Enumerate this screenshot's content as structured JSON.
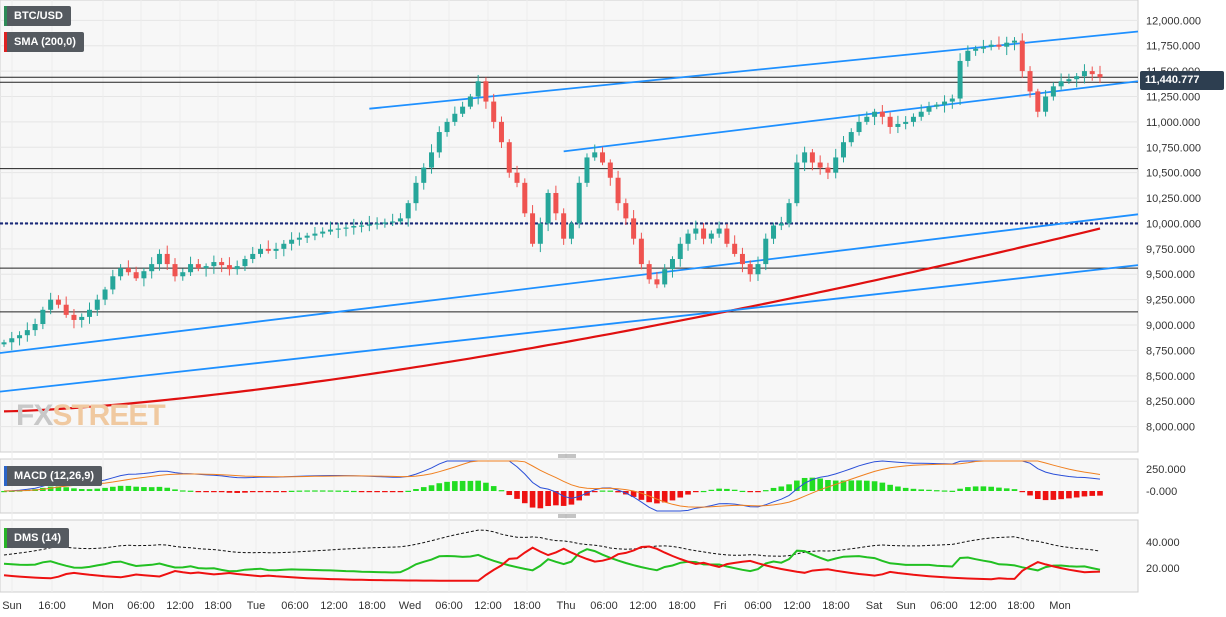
{
  "instrument": "BTC/USD",
  "indicators": {
    "sma": "SMA (200,0)",
    "macd": "MACD (12,26,9)",
    "dms": "DMS (14)"
  },
  "current_price": "11,440.777",
  "logo": {
    "part1": "FX",
    "part2": "STREET"
  },
  "colors": {
    "up": "#26a69a",
    "down": "#ef5350",
    "sma": "#e01010",
    "trend": "#1e90ff",
    "macd_line": "#2a4fd8",
    "signal_line": "#f08020",
    "hist_pos": "#22dd22",
    "hist_neg": "#ee1111",
    "dms_plus": "#22c022",
    "dms_minus": "#ee1111",
    "adx": "#111111"
  },
  "chart_data": [
    {
      "type": "candlestick",
      "title": "",
      "y_ticks": [
        "12,000.000",
        "11,750.000",
        "11,500.000",
        "11,250.000",
        "11,000.000",
        "10,750.000",
        "10,500.000",
        "10,250.000",
        "10,000.000",
        "9,750.000",
        "9,500.000",
        "9,250.000",
        "9,000.000",
        "8,750.000",
        "8,500.000",
        "8,250.000",
        "8,000.000"
      ],
      "ylim": [
        7750,
        12200
      ],
      "x_ticks": [
        "Sun",
        "16:00",
        "Mon",
        "06:00",
        "12:00",
        "18:00",
        "Tue",
        "06:00",
        "12:00",
        "18:00",
        "Wed",
        "06:00",
        "12:00",
        "18:00",
        "Thu",
        "06:00",
        "12:00",
        "18:00",
        "Fri",
        "06:00",
        "12:00",
        "18:00",
        "Sat",
        "Sun",
        "06:00",
        "12:00",
        "18:00",
        "Mon"
      ],
      "horizontal_levels": [
        11440,
        11390,
        10540,
        10000,
        9560,
        9130
      ],
      "highlight_level": 10000,
      "closes": [
        8830,
        8870,
        8900,
        8950,
        9010,
        9150,
        9250,
        9200,
        9100,
        9050,
        9080,
        9150,
        9250,
        9350,
        9480,
        9560,
        9520,
        9460,
        9530,
        9600,
        9700,
        9600,
        9480,
        9520,
        9600,
        9560,
        9580,
        9620,
        9590,
        9550,
        9580,
        9650,
        9700,
        9750,
        9730,
        9750,
        9800,
        9840,
        9860,
        9880,
        9900,
        9920,
        9940,
        9950,
        9960,
        9975,
        9980,
        9990,
        10000,
        10010,
        10020,
        10050,
        10200,
        10400,
        10550,
        10700,
        10900,
        11000,
        11080,
        11150,
        11250,
        11400,
        11200,
        11000,
        10800,
        10500,
        10400,
        10100,
        9800,
        10000,
        10300,
        10100,
        9850,
        10000,
        10400,
        10650,
        10700,
        10600,
        10450,
        10200,
        10050,
        9850,
        9600,
        9450,
        9400,
        9550,
        9650,
        9800,
        9900,
        9950,
        9850,
        9900,
        9950,
        9800,
        9700,
        9600,
        9500,
        9600,
        9850,
        9980,
        10000,
        10200,
        10600,
        10700,
        10600,
        10550,
        10500,
        10650,
        10800,
        10900,
        11000,
        11050,
        11100,
        11050,
        10950,
        10980,
        11000,
        11050,
        11100,
        11150,
        11170,
        11200,
        11230,
        11600,
        11700,
        11720,
        11740,
        11760,
        11740,
        11780,
        11800,
        11500,
        11300,
        11100,
        11250,
        11350,
        11400,
        11420,
        11450,
        11500,
        11470,
        11440
      ]
    },
    {
      "type": "line",
      "title": "",
      "y_ticks": [
        "250.000",
        "-0.000"
      ],
      "ylim": [
        -170,
        300
      ]
    },
    {
      "type": "line",
      "title": "",
      "y_ticks": [
        "40.000",
        "20.000"
      ],
      "ylim": [
        5,
        58
      ]
    }
  ]
}
